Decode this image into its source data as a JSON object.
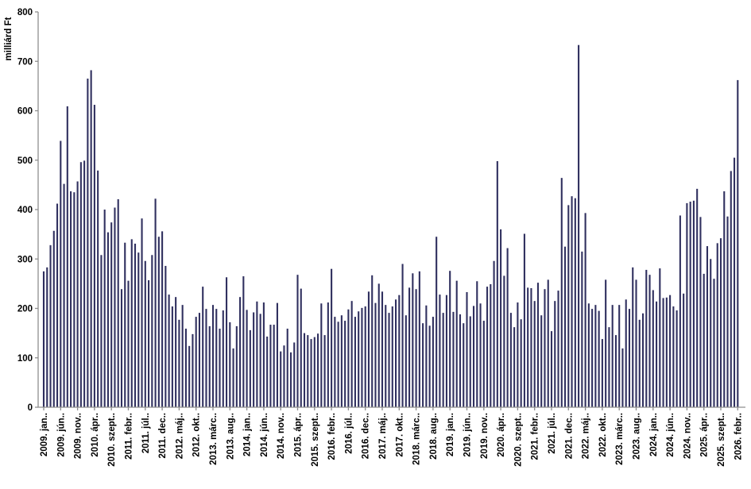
{
  "chart_data": {
    "type": "bar",
    "title": "",
    "ylabel": "milliárd Ft",
    "xlabel": "",
    "ylim": [
      0,
      800
    ],
    "ytick_step": 100,
    "yticks": [
      0,
      100,
      200,
      300,
      400,
      500,
      600,
      700,
      800
    ],
    "grid": "off",
    "legend": "none",
    "x_frequency": "monthly",
    "x_start": "2009. január",
    "x_end": "2026. február",
    "x_tick_every": 5,
    "x_tick_labels": [
      "2009. jan..",
      "2009. jún..",
      "2009. nov..",
      "2010. ápr..",
      "2010. szept..",
      "2011. febr..",
      "2011. júl..",
      "2011. dec..",
      "2012. máj..",
      "2012. okt..",
      "2013. márc..",
      "2013. aug..",
      "2014. jan..",
      "2014. jún..",
      "2014. nov..",
      "2015. ápr..",
      "2015. szept..",
      "2016. febr..",
      "2016. júl..",
      "2016. dec..",
      "2017. máj..",
      "2017. okt..",
      "2018. márc..",
      "2018. aug..",
      "2019. jan..",
      "2019. jún..",
      "2019. nov..",
      "2020. ápr..",
      "2020. szept..",
      "2021. febr..",
      "2021. júl..",
      "2021. dec..",
      "2022. máj..",
      "2022. okt..",
      "2023. márc..",
      "2023. aug..",
      "2024. jan..",
      "2024. jún..",
      "2024. nov..",
      "2025. ápr..",
      "2025. szept..",
      "2026. febr.."
    ],
    "values": [
      275,
      283,
      328,
      357,
      412,
      539,
      452,
      609,
      437,
      435,
      457,
      496,
      499,
      665,
      682,
      612,
      479,
      308,
      400,
      354,
      374,
      404,
      421,
      239,
      333,
      256,
      340,
      331,
      313,
      382,
      296,
      257,
      308,
      422,
      345,
      356,
      286,
      228,
      204,
      223,
      177,
      207,
      159,
      124,
      148,
      183,
      191,
      244,
      199,
      164,
      207,
      199,
      159,
      196,
      263,
      172,
      119,
      164,
      223,
      265,
      197,
      156,
      192,
      214,
      189,
      212,
      143,
      167,
      167,
      211,
      113,
      125,
      159,
      111,
      131,
      268,
      240,
      150,
      146,
      138,
      142,
      149,
      210,
      146,
      212,
      280,
      183,
      173,
      186,
      175,
      198,
      215,
      183,
      194,
      201,
      204,
      234,
      267,
      211,
      250,
      234,
      207,
      191,
      204,
      218,
      227,
      290,
      186,
      242,
      271,
      239,
      275,
      170,
      206,
      165,
      183,
      345,
      228,
      191,
      227,
      276,
      193,
      256,
      188,
      170,
      233,
      184,
      205,
      255,
      210,
      175,
      244,
      249,
      296,
      498,
      360,
      266,
      322,
      191,
      162,
      212,
      178,
      351,
      242,
      241,
      215,
      252,
      186,
      239,
      258,
      154,
      215,
      236,
      464,
      325,
      409,
      427,
      423,
      733,
      315,
      393,
      210,
      199,
      207,
      195,
      138,
      258,
      162,
      207,
      146,
      207,
      119,
      218,
      199,
      283,
      258,
      177,
      190,
      278,
      268,
      237,
      214,
      281,
      221,
      222,
      227,
      204,
      196,
      388,
      230,
      413,
      416,
      418,
      442,
      385,
      270,
      326,
      300,
      260,
      332,
      342,
      437,
      386,
      478,
      505,
      662
    ],
    "bar_color": "#30305F",
    "axis_color": "#8F8F8F",
    "text_color": "#000000",
    "background_color": "#FFFFFF"
  }
}
